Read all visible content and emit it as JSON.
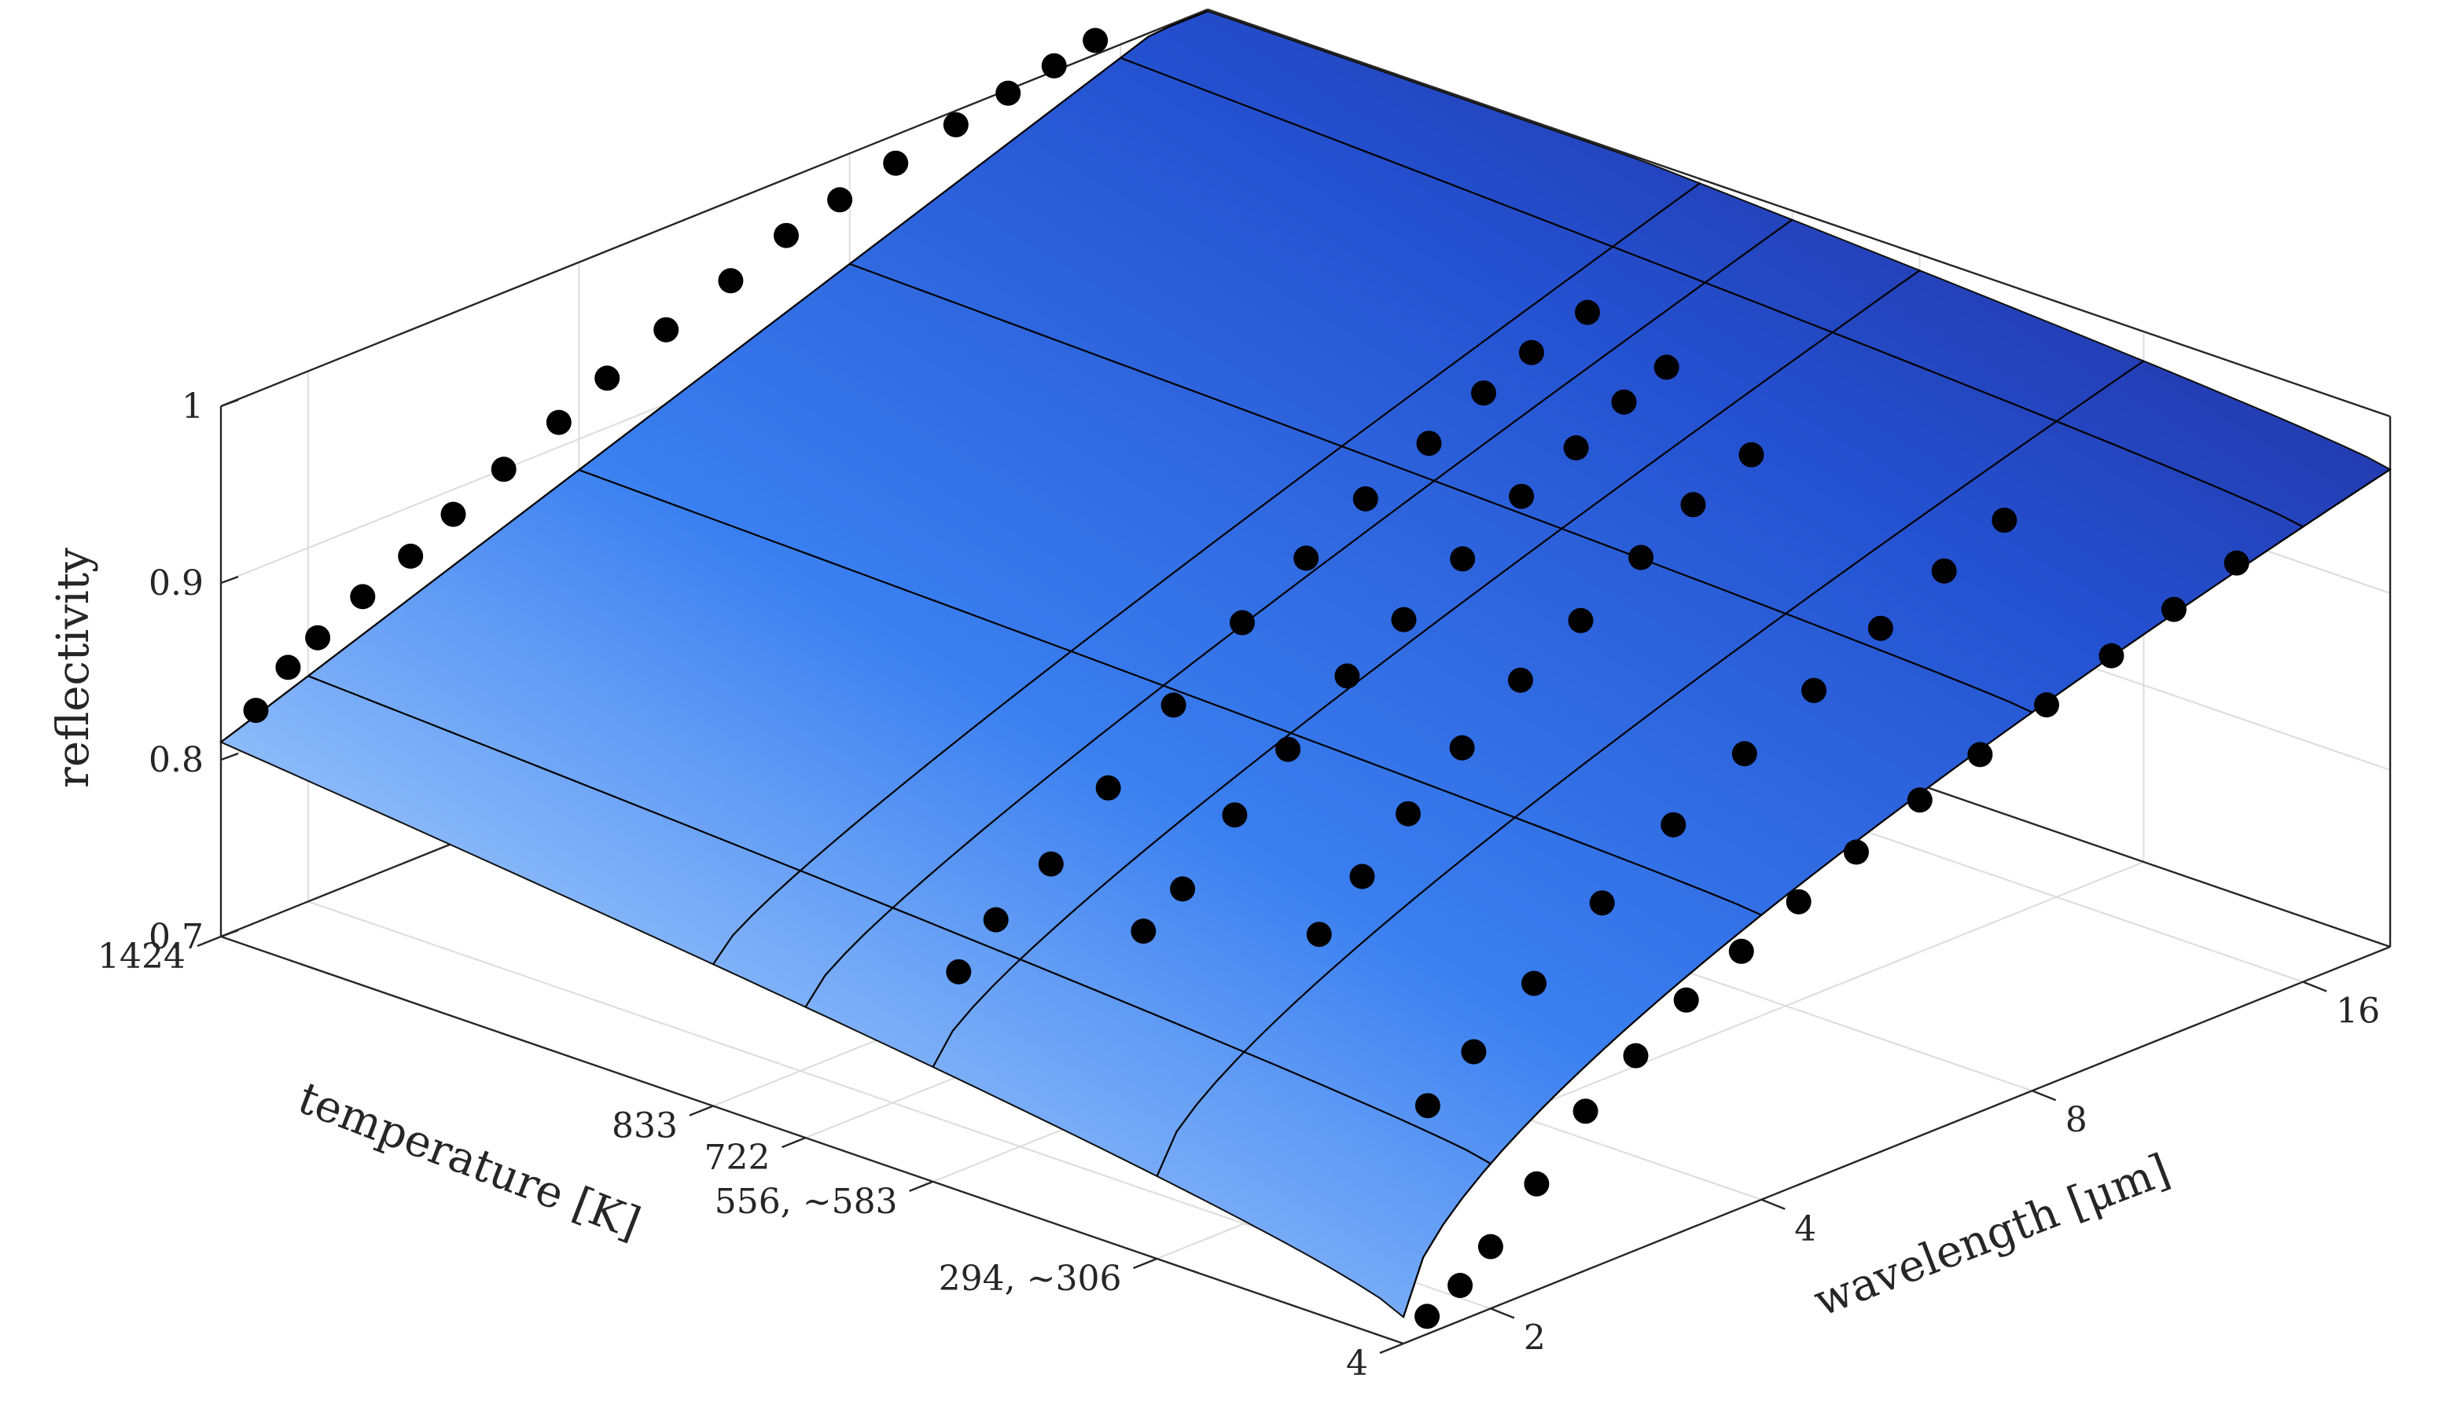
{
  "chart_data": {
    "type": "surface3d",
    "title": "",
    "zlabel": "reflectivity",
    "xlabel": "wavelength [μm]",
    "ylabel": "temperature [K]",
    "x_scale": "log2",
    "xlim": [
      1.6,
      20
    ],
    "ylim": [
      4,
      1424
    ],
    "zlim": [
      0.7,
      1.0
    ],
    "x_ticks": [
      2,
      4,
      8,
      16
    ],
    "x_tick_labels": [
      "2",
      "4",
      "8",
      "16"
    ],
    "y_ticks": [
      4,
      300,
      569,
      722,
      833,
      1424
    ],
    "y_tick_labels": [
      "4",
      "294, ∼306",
      "556, ∼583",
      "722",
      "833",
      "1424"
    ],
    "z_ticks": [
      0.7,
      0.8,
      0.9,
      1.0
    ],
    "z_tick_labels": [
      "0.7",
      "0.8",
      "0.9",
      "1"
    ],
    "grid": true,
    "surface_color_low": "#ddeeff",
    "surface_color_mid": "#3378f0",
    "surface_color_high": "#23218a",
    "marker_color": "#000000",
    "series": [
      {
        "temperature": 1424,
        "points": [
          [
            1.75,
            0.82
          ],
          [
            1.9,
            0.837
          ],
          [
            2.05,
            0.847
          ],
          [
            2.3,
            0.86
          ],
          [
            2.6,
            0.872
          ],
          [
            2.9,
            0.886
          ],
          [
            3.3,
            0.9
          ],
          [
            3.8,
            0.914
          ],
          [
            4.3,
            0.928
          ],
          [
            5.0,
            0.942
          ],
          [
            5.9,
            0.955
          ],
          [
            6.8,
            0.968
          ],
          [
            7.8,
            0.976
          ],
          [
            9.0,
            0.984
          ],
          [
            10.5,
            0.992
          ],
          [
            12,
            0.998
          ],
          [
            13.5,
            1.003
          ],
          [
            15,
            1.008
          ]
        ]
      },
      {
        "temperature": 833,
        "points": [
          [
            3.0,
            0.72
          ],
          [
            3.3,
            0.741
          ],
          [
            3.8,
            0.76
          ],
          [
            4.4,
            0.79
          ],
          [
            5.2,
            0.822
          ],
          [
            6.2,
            0.853
          ],
          [
            7.3,
            0.875
          ],
          [
            8.5,
            0.895
          ],
          [
            10,
            0.912
          ],
          [
            11.5,
            0.928
          ],
          [
            13,
            0.94
          ],
          [
            15,
            0.95
          ]
        ]
      },
      {
        "temperature": 722,
        "points": [
          [
            3.8,
            0.74
          ],
          [
            4.2,
            0.755
          ],
          [
            4.8,
            0.785
          ],
          [
            5.5,
            0.81
          ],
          [
            6.4,
            0.838
          ],
          [
            7.4,
            0.857
          ],
          [
            8.6,
            0.878
          ],
          [
            10,
            0.9
          ],
          [
            11.5,
            0.915
          ],
          [
            13,
            0.93
          ],
          [
            14.5,
            0.94
          ]
        ]
      },
      {
        "temperature": 569,
        "points": [
          [
            4.3,
            0.752
          ],
          [
            4.8,
            0.775
          ],
          [
            5.4,
            0.8
          ],
          [
            6.2,
            0.825
          ],
          [
            7.2,
            0.85
          ],
          [
            8.4,
            0.87
          ],
          [
            9.8,
            0.892
          ],
          [
            11.2,
            0.91
          ],
          [
            13,
            0.925
          ]
        ]
      },
      {
        "temperature": 300,
        "points": [
          [
            3.2,
            0.725
          ],
          [
            3.6,
            0.745
          ],
          [
            4.2,
            0.77
          ],
          [
            5.0,
            0.8
          ],
          [
            6.0,
            0.828
          ],
          [
            7.2,
            0.852
          ],
          [
            8.6,
            0.872
          ],
          [
            10.2,
            0.892
          ],
          [
            12,
            0.91
          ],
          [
            14,
            0.925
          ]
        ]
      },
      {
        "temperature": 4,
        "points": [
          [
            1.7,
            0.71
          ],
          [
            1.85,
            0.72
          ],
          [
            2.0,
            0.735
          ],
          [
            2.25,
            0.76
          ],
          [
            2.55,
            0.79
          ],
          [
            2.9,
            0.81
          ],
          [
            3.3,
            0.83
          ],
          [
            3.8,
            0.845
          ],
          [
            4.4,
            0.86
          ],
          [
            5.1,
            0.875
          ],
          [
            6.0,
            0.89
          ],
          [
            7.0,
            0.902
          ],
          [
            8.3,
            0.915
          ],
          [
            9.8,
            0.928
          ],
          [
            11.5,
            0.94
          ],
          [
            13.5,
            0.952
          ]
        ]
      }
    ]
  }
}
